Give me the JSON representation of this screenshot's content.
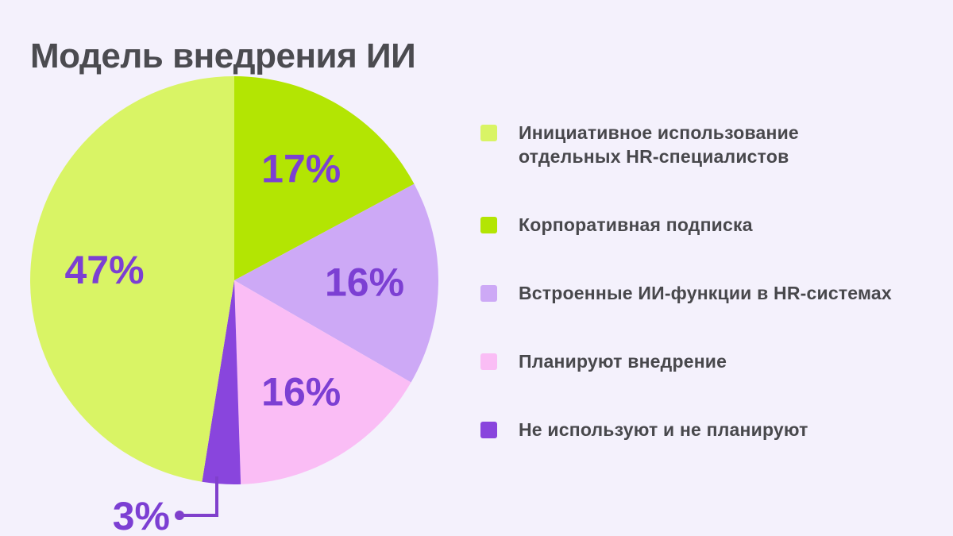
{
  "title": "Модель внедрения ИИ",
  "colors": {
    "background": "#f4f1fc",
    "heading_text": "#4b4b50",
    "legend_text": "#48484c",
    "value_label": "#7c3fd3",
    "callout_line": "#8040cc"
  },
  "chart_data": {
    "type": "pie",
    "title": "Модель внедрения ИИ",
    "value_suffix": "%",
    "legend_position": "right",
    "start_angle_deg": 0,
    "direction": "clockwise",
    "slices": [
      {
        "label": "Инициативное использование\nотдельных HR-специалистов",
        "value": 47,
        "value_text": "47%",
        "color": "#d9f465"
      },
      {
        "label": "Корпоративная подписка",
        "value": 17,
        "value_text": "17%",
        "color": "#b3e503"
      },
      {
        "label": "Встроенные ИИ-функции в HR-системах",
        "value": 16,
        "value_text": "16%",
        "color": "#cda9f6"
      },
      {
        "label": "Планируют внедрение",
        "value": 16,
        "value_text": "16%",
        "color": "#fabdf5"
      },
      {
        "label": "Не используют и не планируют",
        "value": 3,
        "value_text": "3%",
        "color": "#8945dd"
      }
    ]
  }
}
